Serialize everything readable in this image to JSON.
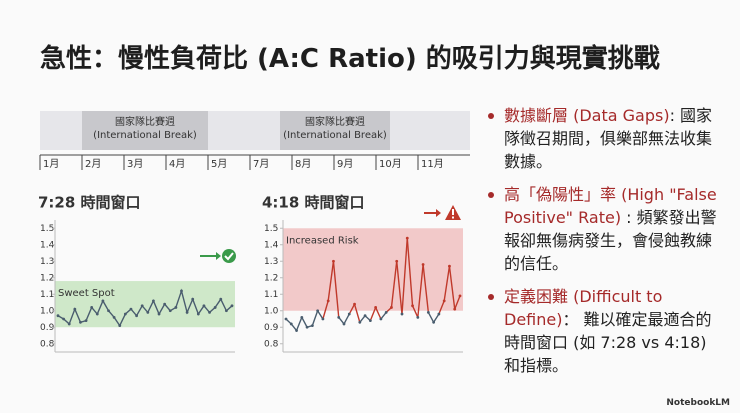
{
  "title": "急性：慢性負荷比 (A:C Ratio) 的吸引力與現實挑戰",
  "timeline": {
    "months": [
      "1月",
      "2月",
      "3月",
      "4月",
      "5月",
      "7月",
      "8月",
      "9月",
      "10月",
      "11月"
    ],
    "breaks": [
      {
        "label": "國家隊比賽週",
        "sublabel": "(International Break)"
      },
      {
        "label": "國家隊比賽週",
        "sublabel": "(International Break)"
      }
    ]
  },
  "chart_data": [
    {
      "type": "line",
      "title": "7:28 時間窗口",
      "band_label": "Sweet Spot",
      "band": [
        0.9,
        1.18
      ],
      "band_color": "#cfe8c9",
      "color": "#4a5d6e",
      "ylim": [
        0.75,
        1.55
      ],
      "yticks": [
        0.8,
        0.9,
        {
          "value": 1,
          "label": "1.0"
        },
        1.1,
        1.2,
        1.3,
        1.4,
        1.5
      ],
      "values": [
        0.97,
        0.95,
        0.92,
        1.01,
        0.93,
        0.94,
        1.02,
        0.98,
        1.06,
        1.0,
        0.96,
        0.91,
        0.98,
        1.01,
        0.97,
        1.03,
        0.99,
        1.06,
        0.98,
        1.04,
        1.0,
        1.02,
        1.12,
        0.99,
        1.07,
        0.98,
        1.03,
        0.99,
        1.02,
        1.07,
        1.0,
        1.03
      ]
    },
    {
      "type": "line",
      "title": "4:18 時間窗口",
      "band_label": "Increased Risk",
      "band": [
        1.0,
        1.5
      ],
      "band_color": "#f2c9c9",
      "color": "#4a5d6e",
      "risk_color": "#c0392b",
      "ylim": [
        0.75,
        1.55
      ],
      "yticks": [
        0.8,
        0.9,
        {
          "value": 1,
          "label": "1.0"
        },
        1.1,
        1.2,
        1.3,
        1.4,
        1.5
      ],
      "values": [
        0.95,
        0.92,
        0.88,
        0.96,
        0.9,
        0.91,
        1.0,
        0.95,
        1.06,
        1.3,
        0.96,
        0.92,
        0.98,
        1.04,
        0.93,
        0.97,
        0.94,
        1.02,
        0.95,
        0.99,
        1.02,
        1.3,
        0.98,
        1.44,
        1.03,
        0.96,
        1.28,
        0.99,
        0.93,
        0.98,
        1.06,
        1.27,
        1.01,
        1.09
      ]
    }
  ],
  "bullets": [
    {
      "head": "數據斷層 (Data Gaps)",
      "body": ": 國家隊徵召期間，俱樂部無法收集數據。"
    },
    {
      "head": "高「偽陽性」率 (High \"False Positive\" Rate)",
      "body": " : 頻繁發出警報卻無傷病發生，會侵蝕教練的信任。"
    },
    {
      "head": "定義困難 (Difficult to Define)",
      "body": "： 難以確定最適合的時間窗口 (如 7:28 vs 4:18) 和指標。"
    }
  ],
  "footer": "NotebookLM"
}
